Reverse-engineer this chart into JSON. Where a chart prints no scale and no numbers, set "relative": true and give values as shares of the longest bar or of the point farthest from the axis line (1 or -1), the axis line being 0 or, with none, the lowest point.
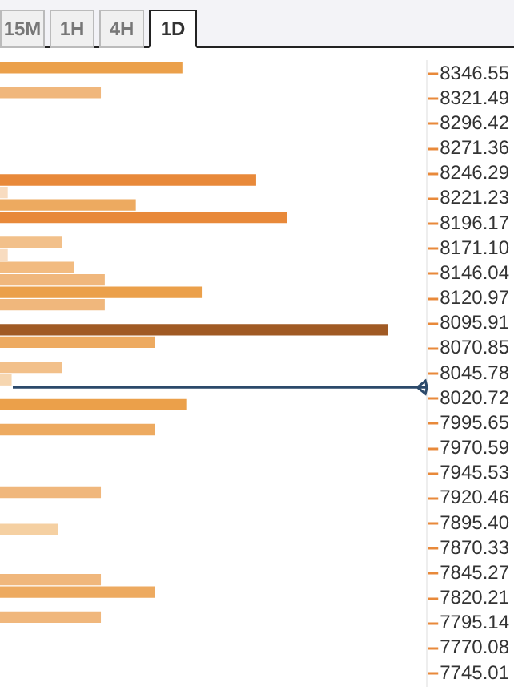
{
  "chart_data": {
    "type": "bar",
    "orientation": "horizontal",
    "relative": true,
    "annotations": [
      "15M",
      "1H",
      "4H",
      "1D"
    ],
    "x": [
      8352.8,
      8327.8,
      8240.0,
      8227.5,
      8215.0,
      8202.5,
      8177.4,
      8164.9,
      8152.3,
      8139.8,
      8127.3,
      8114.8,
      8089.7,
      8077.2,
      8052.1,
      8039.6,
      8014.5,
      7989.5,
      7926.8,
      7889.2,
      7839.1,
      7826.6,
      7801.5
    ],
    "values": [
      0.47,
      0.26,
      0.66,
      0.02,
      0.35,
      0.74,
      0.16,
      0.02,
      0.19,
      0.27,
      0.52,
      0.27,
      1,
      0.4,
      0.16,
      0.03,
      0.48,
      0.4,
      0.26,
      0.15,
      0.26,
      0.4,
      0.26
    ],
    "colors": [
      "#eba04a",
      "#f0b77c",
      "#e8893a",
      "#f8dcc0",
      "#edaa60",
      "#e8893a",
      "#f2c08a",
      "#f8dcc0",
      "#f2bb80",
      "#f0b77c",
      "#eba04a",
      "#f0b77c",
      "#a05a24",
      "#edaa60",
      "#f2c08a",
      "#f6d6b0",
      "#eba04a",
      "#edaa60",
      "#f0b77c",
      "#f5d0a2",
      "#f0b77c",
      "#edaa60",
      "#f0b77c"
    ],
    "ylim": [
      7732.5,
      8359.1
    ],
    "yticks": [
      8346.55,
      8321.49,
      8296.42,
      8271.36,
      8246.29,
      8221.23,
      8196.17,
      {
        "value": 8171.1,
        "label": "8171.10"
      },
      8146.04,
      8120.97,
      8095.91,
      8070.85,
      8045.78,
      8020.72,
      7995.65,
      7970.59,
      7945.53,
      7920.46,
      {
        "value": 7895.4,
        "label": "7895.40"
      },
      7870.33,
      7845.27,
      7820.21,
      7795.14,
      7770.08,
      7745.01
    ],
    "ref_lines": [
      {
        "axis": "y",
        "value": 8032,
        "color": "#2c4a6b"
      }
    ],
    "grid": false,
    "legend": false
  }
}
